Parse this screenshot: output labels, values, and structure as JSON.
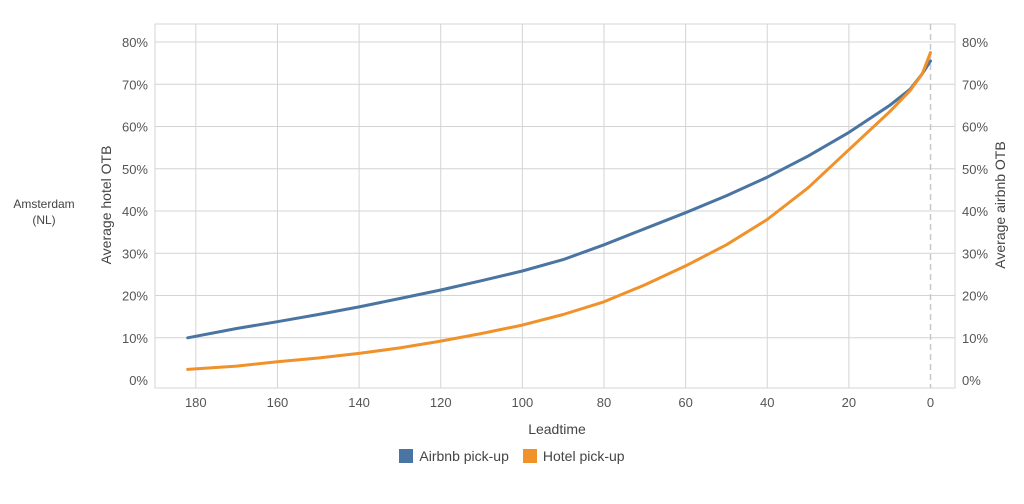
{
  "side_label": {
    "line1": "Amsterdam",
    "line2": "(NL)"
  },
  "colors": {
    "airbnb": "#4a74a2",
    "hotel": "#f0912a",
    "grid": "#d4d4d4",
    "zero_line": "#c8c8c8"
  },
  "chart_data": {
    "type": "line",
    "xlabel": "Leadtime",
    "ylabel_left": "Average hotel OTB",
    "ylabel_right": "Average airbnb OTB",
    "xlim": [
      190,
      -6
    ],
    "ylim": [
      0,
      80
    ],
    "x_ticks": [
      180,
      160,
      140,
      120,
      100,
      80,
      60,
      40,
      20,
      0
    ],
    "y_ticks": [
      "0%",
      "10%",
      "20%",
      "30%",
      "40%",
      "50%",
      "60%",
      "70%",
      "80%"
    ],
    "y_tick_values": [
      0,
      10,
      20,
      30,
      40,
      50,
      60,
      70,
      80
    ],
    "reference_line_x": 0,
    "grid": true,
    "legend_position": "bottom",
    "series": [
      {
        "name": "Airbnb pick-up",
        "color_key": "airbnb",
        "x": [
          182,
          170,
          160,
          150,
          140,
          130,
          120,
          110,
          100,
          90,
          80,
          70,
          60,
          50,
          40,
          30,
          20,
          10,
          5,
          2,
          0
        ],
        "y": [
          10,
          12.2,
          13.8,
          15.5,
          17.3,
          19.3,
          21.3,
          23.5,
          25.8,
          28.5,
          32,
          35.8,
          39.6,
          43.6,
          48,
          53,
          58.6,
          65,
          68.8,
          72.5,
          75.5
        ]
      },
      {
        "name": "Hotel pick-up",
        "color_key": "hotel",
        "x": [
          182,
          170,
          160,
          150,
          140,
          130,
          120,
          110,
          100,
          90,
          80,
          70,
          60,
          50,
          40,
          30,
          20,
          10,
          5,
          2,
          0
        ],
        "y": [
          2.5,
          3.3,
          4.3,
          5.2,
          6.3,
          7.6,
          9.2,
          11,
          13,
          15.5,
          18.5,
          22.5,
          27,
          32,
          38,
          45.5,
          54.5,
          63.5,
          68.5,
          72.5,
          77.5
        ]
      }
    ]
  }
}
